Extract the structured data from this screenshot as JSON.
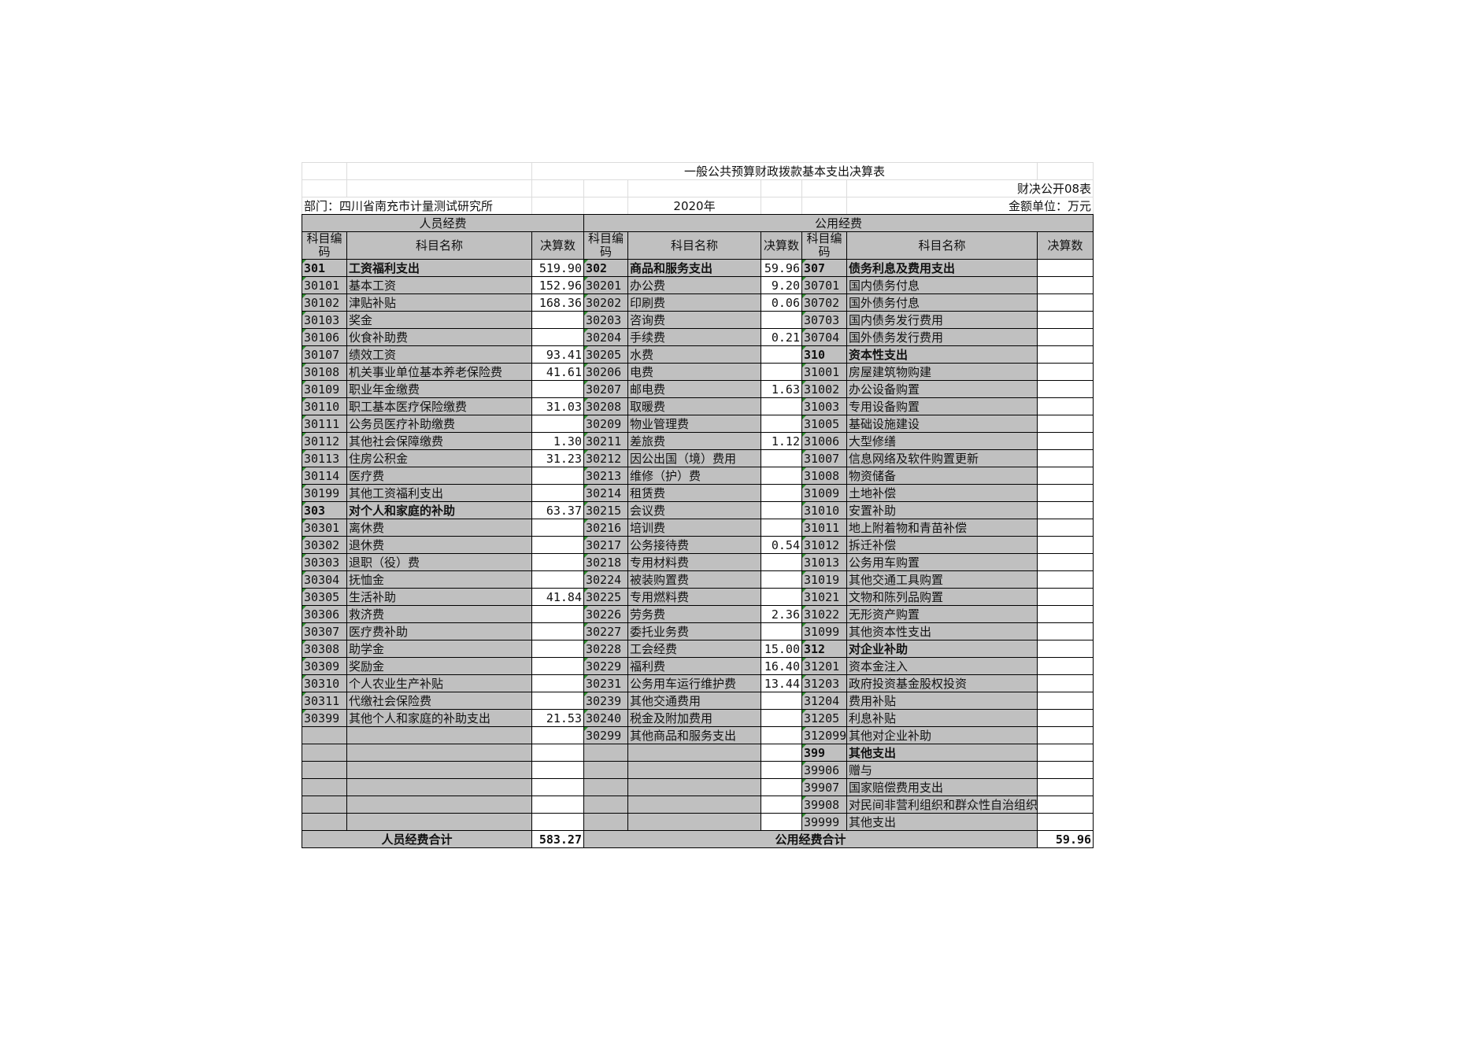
{
  "title": "一般公共预算财政拨款基本支出决算表",
  "form_no": "财决公开08表",
  "department": "部门：四川省南充市计量测试研究所",
  "year": "2020年",
  "unit": "金额单位：万元",
  "groups": {
    "personnel": "人员经费",
    "public": "公用经费"
  },
  "headers": [
    "科目编码",
    "科目名称",
    "决算数",
    "科目编码",
    "科目名称",
    "决算数",
    "科目编码",
    "科目名称",
    "决算数"
  ],
  "colors": {
    "cell_gray": "#c0c0c0",
    "amount_white": "#ffffff",
    "marker_green": "#2e8b2e"
  },
  "left_rows": [
    {
      "code": "301",
      "name": "工资福利支出",
      "amount": "519.90",
      "bold": true
    },
    {
      "code": "30101",
      "name": "基本工资",
      "amount": "152.96"
    },
    {
      "code": "30102",
      "name": "津贴补贴",
      "amount": "168.36"
    },
    {
      "code": "30103",
      "name": "奖金",
      "amount": ""
    },
    {
      "code": "30106",
      "name": "伙食补助费",
      "amount": ""
    },
    {
      "code": "30107",
      "name": "绩效工资",
      "amount": "93.41"
    },
    {
      "code": "30108",
      "name": "机关事业单位基本养老保险费",
      "amount": "41.61"
    },
    {
      "code": "30109",
      "name": "职业年金缴费",
      "amount": ""
    },
    {
      "code": "30110",
      "name": "职工基本医疗保险缴费",
      "amount": "31.03"
    },
    {
      "code": "30111",
      "name": "公务员医疗补助缴费",
      "amount": ""
    },
    {
      "code": "30112",
      "name": "其他社会保障缴费",
      "amount": "1.30"
    },
    {
      "code": "30113",
      "name": "住房公积金",
      "amount": "31.23"
    },
    {
      "code": "30114",
      "name": "医疗费",
      "amount": ""
    },
    {
      "code": "30199",
      "name": "其他工资福利支出",
      "amount": ""
    },
    {
      "code": "303",
      "name": "对个人和家庭的补助",
      "amount": "63.37",
      "bold": true
    },
    {
      "code": "30301",
      "name": "离休费",
      "amount": ""
    },
    {
      "code": "30302",
      "name": "退休费",
      "amount": ""
    },
    {
      "code": "30303",
      "name": "退职（役）费",
      "amount": ""
    },
    {
      "code": "30304",
      "name": "抚恤金",
      "amount": ""
    },
    {
      "code": "30305",
      "name": "生活补助",
      "amount": "41.84"
    },
    {
      "code": "30306",
      "name": "救济费",
      "amount": ""
    },
    {
      "code": "30307",
      "name": "医疗费补助",
      "amount": ""
    },
    {
      "code": "30308",
      "name": "助学金",
      "amount": ""
    },
    {
      "code": "30309",
      "name": "奖励金",
      "amount": ""
    },
    {
      "code": "30310",
      "name": "个人农业生产补贴",
      "amount": ""
    },
    {
      "code": "30311",
      "name": "代缴社会保险费",
      "amount": ""
    },
    {
      "code": "30399",
      "name": "其他个人和家庭的补助支出",
      "amount": "21.53"
    }
  ],
  "middle_rows": [
    {
      "code": "302",
      "name": "商品和服务支出",
      "amount": "59.96",
      "bold": true
    },
    {
      "code": "30201",
      "name": "办公费",
      "amount": "9.20"
    },
    {
      "code": "30202",
      "name": "印刷费",
      "amount": "0.06"
    },
    {
      "code": "30203",
      "name": "咨询费",
      "amount": ""
    },
    {
      "code": "30204",
      "name": "手续费",
      "amount": "0.21"
    },
    {
      "code": "30205",
      "name": "水费",
      "amount": ""
    },
    {
      "code": "30206",
      "name": "电费",
      "amount": ""
    },
    {
      "code": "30207",
      "name": "邮电费",
      "amount": "1.63"
    },
    {
      "code": "30208",
      "name": "取暖费",
      "amount": ""
    },
    {
      "code": "30209",
      "name": "物业管理费",
      "amount": ""
    },
    {
      "code": "30211",
      "name": "差旅费",
      "amount": "1.12"
    },
    {
      "code": "30212",
      "name": "因公出国（境）费用",
      "amount": ""
    },
    {
      "code": "30213",
      "name": "维修（护）费",
      "amount": ""
    },
    {
      "code": "30214",
      "name": "租赁费",
      "amount": ""
    },
    {
      "code": "30215",
      "name": "会议费",
      "amount": ""
    },
    {
      "code": "30216",
      "name": "培训费",
      "amount": ""
    },
    {
      "code": "30217",
      "name": "公务接待费",
      "amount": "0.54"
    },
    {
      "code": "30218",
      "name": "专用材料费",
      "amount": ""
    },
    {
      "code": "30224",
      "name": "被装购置费",
      "amount": ""
    },
    {
      "code": "30225",
      "name": "专用燃料费",
      "amount": ""
    },
    {
      "code": "30226",
      "name": "劳务费",
      "amount": "2.36"
    },
    {
      "code": "30227",
      "name": "委托业务费",
      "amount": ""
    },
    {
      "code": "30228",
      "name": "工会经费",
      "amount": "15.00"
    },
    {
      "code": "30229",
      "name": "福利费",
      "amount": "16.40"
    },
    {
      "code": "30231",
      "name": "公务用车运行维护费",
      "amount": "13.44"
    },
    {
      "code": "30239",
      "name": "其他交通费用",
      "amount": ""
    },
    {
      "code": "30240",
      "name": "税金及附加费用",
      "amount": ""
    },
    {
      "code": "30299",
      "name": "其他商品和服务支出",
      "amount": ""
    }
  ],
  "right_rows": [
    {
      "code": "307",
      "name": "债务利息及费用支出",
      "amount": "",
      "bold": true
    },
    {
      "code": "30701",
      "name": "国内债务付息",
      "amount": ""
    },
    {
      "code": "30702",
      "name": "国外债务付息",
      "amount": ""
    },
    {
      "code": "30703",
      "name": "国内债务发行费用",
      "amount": ""
    },
    {
      "code": "30704",
      "name": "国外债务发行费用",
      "amount": ""
    },
    {
      "code": "310",
      "name": "资本性支出",
      "amount": "",
      "bold": true
    },
    {
      "code": "31001",
      "name": "房屋建筑物购建",
      "amount": ""
    },
    {
      "code": "31002",
      "name": "办公设备购置",
      "amount": ""
    },
    {
      "code": "31003",
      "name": "专用设备购置",
      "amount": ""
    },
    {
      "code": "31005",
      "name": "基础设施建设",
      "amount": ""
    },
    {
      "code": "31006",
      "name": "大型修缮",
      "amount": ""
    },
    {
      "code": "31007",
      "name": "信息网络及软件购置更新",
      "amount": ""
    },
    {
      "code": "31008",
      "name": "物资储备",
      "amount": ""
    },
    {
      "code": "31009",
      "name": "土地补偿",
      "amount": ""
    },
    {
      "code": "31010",
      "name": "安置补助",
      "amount": ""
    },
    {
      "code": "31011",
      "name": "地上附着物和青苗补偿",
      "amount": ""
    },
    {
      "code": "31012",
      "name": "拆迁补偿",
      "amount": ""
    },
    {
      "code": "31013",
      "name": "公务用车购置",
      "amount": ""
    },
    {
      "code": "31019",
      "name": "其他交通工具购置",
      "amount": ""
    },
    {
      "code": "31021",
      "name": "文物和陈列品购置",
      "amount": ""
    },
    {
      "code": "31022",
      "name": "无形资产购置",
      "amount": ""
    },
    {
      "code": "31099",
      "name": "其他资本性支出",
      "amount": ""
    },
    {
      "code": "312",
      "name": "对企业补助",
      "amount": "",
      "bold": true
    },
    {
      "code": "31201",
      "name": "资本金注入",
      "amount": ""
    },
    {
      "code": "31203",
      "name": "政府投资基金股权投资",
      "amount": ""
    },
    {
      "code": "31204",
      "name": "费用补贴",
      "amount": ""
    },
    {
      "code": "31205",
      "name": "利息补贴",
      "amount": ""
    },
    {
      "code": "312099",
      "name": "其他对企业补助",
      "amount": ""
    },
    {
      "code": "399",
      "name": "其他支出",
      "amount": "",
      "bold": true
    },
    {
      "code": "39906",
      "name": "赠与",
      "amount": ""
    },
    {
      "code": "39907",
      "name": "国家赔偿费用支出",
      "amount": ""
    },
    {
      "code": "39908",
      "name": "对民间非营利组织和群众性自治组织补贴",
      "amount": "",
      "small": true
    },
    {
      "code": "39999",
      "name": "其他支出",
      "amount": ""
    }
  ],
  "totals": {
    "personnel_label": "人员经费合计",
    "personnel_amount": "583.27",
    "public_label": "公用经费合计",
    "public_amount": "59.96"
  }
}
